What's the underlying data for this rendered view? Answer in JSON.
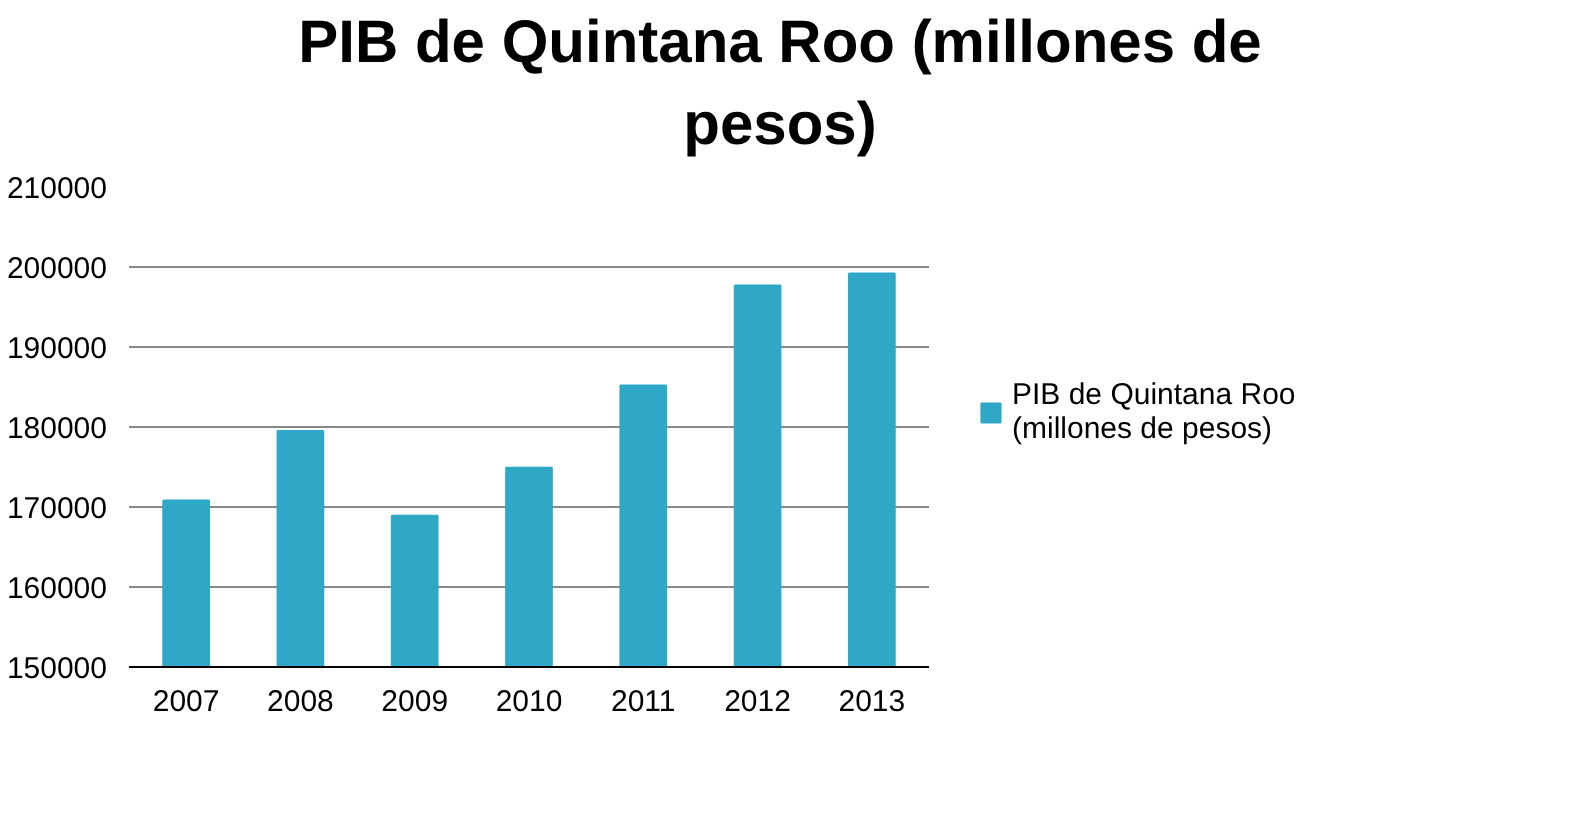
{
  "chart_data": {
    "type": "bar",
    "title": "PIB de Quintana Roo (millones de pesos)",
    "categories": [
      "2007",
      "2008",
      "2009",
      "2010",
      "2011",
      "2012",
      "2013"
    ],
    "series": [
      {
        "name": "PIB de Quintana Roo (millones de pesos)",
        "color": "#2fa8c8",
        "values": [
          170800,
          179500,
          168900,
          174900,
          185200,
          197700,
          199200
        ]
      }
    ],
    "ylim": [
      150000,
      210000
    ],
    "yticks": [
      150000,
      160000,
      170000,
      180000,
      190000,
      200000,
      210000
    ],
    "grid": "y",
    "legend": "right"
  }
}
